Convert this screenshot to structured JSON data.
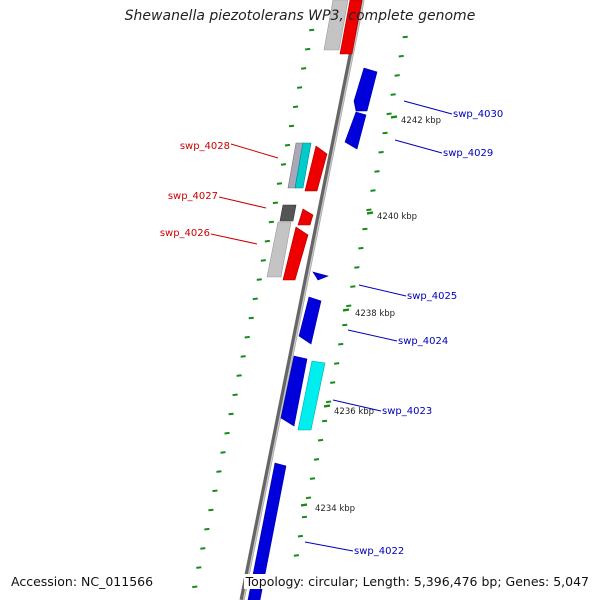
{
  "title": "Shewanella piezotolerans WP3, complete genome",
  "accession": "Accession: NC_011566",
  "summary": "Topology: circular; Length: 5,396,476 bp; Genes: 5,047",
  "colors": {
    "forward_gene": "#ee0000",
    "reverse_gene": "#0000dd",
    "forward_label": "#cc0000",
    "reverse_label": "#0000bb",
    "backbone": "#888888",
    "tick": "#1a8a1a"
  },
  "ruler": [
    {
      "label": "4242 kbp"
    },
    {
      "label": "4240 kbp"
    },
    {
      "label": "4238 kbp"
    },
    {
      "label": "4236 kbp"
    },
    {
      "label": "4234 kbp"
    }
  ],
  "forward_genes": [
    {
      "label": "swp_4028"
    },
    {
      "label": "swp_4027"
    },
    {
      "label": "swp_4026"
    }
  ],
  "reverse_genes": [
    {
      "label": "swp_4030"
    },
    {
      "label": "swp_4029"
    },
    {
      "label": "swp_4025"
    },
    {
      "label": "swp_4024"
    },
    {
      "label": "swp_4023"
    },
    {
      "label": "swp_4022"
    }
  ]
}
